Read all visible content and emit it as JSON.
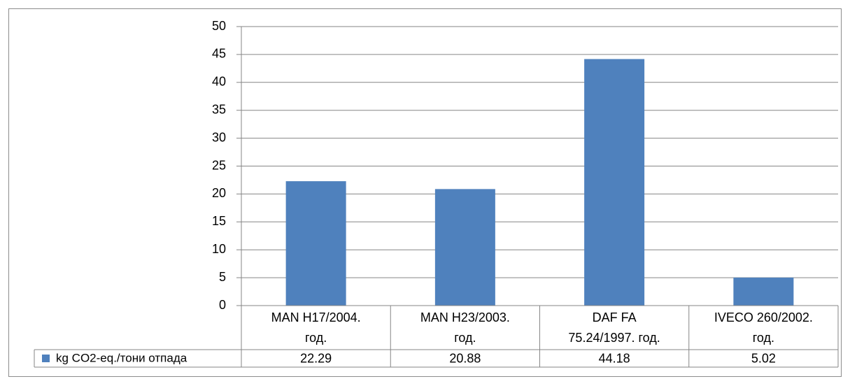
{
  "chart_data": {
    "type": "bar",
    "categories": [
      "MAN H17/2004.\nгод.",
      "MAN H23/2003.\nгод.",
      "DAF FA\n75.24/1997. год.",
      "IVECO 260/2002.\nгод."
    ],
    "series": [
      {
        "name": "kg CO2-eq./тони отпада",
        "color": "#4f81bd",
        "values": [
          22.29,
          20.88,
          44.18,
          5.02
        ]
      }
    ],
    "ylim": [
      0,
      50
    ],
    "yticks": [
      0,
      5,
      10,
      15,
      20,
      25,
      30,
      35,
      40,
      45,
      50
    ],
    "grid": true,
    "data_table": true
  }
}
